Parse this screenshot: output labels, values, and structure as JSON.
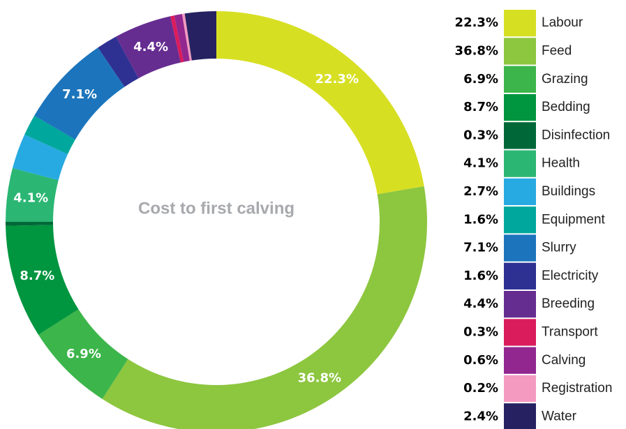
{
  "chart_data": {
    "type": "donut",
    "title": "Cost to first calving",
    "categories": [
      "Labour",
      "Feed",
      "Grazing",
      "Bedding",
      "Disinfection",
      "Health",
      "Buildings",
      "Equipment",
      "Slurry",
      "Electricity",
      "Breeding",
      "Transport",
      "Calving",
      "Registration",
      "Water"
    ],
    "values": [
      22.3,
      36.8,
      6.9,
      8.7,
      0.3,
      4.1,
      2.7,
      1.6,
      7.1,
      1.6,
      4.4,
      0.3,
      0.6,
      0.2,
      2.4
    ],
    "value_labels": [
      "22.3%",
      "36.8%",
      "6.9%",
      "8.7%",
      "0.3%",
      "4.1%",
      "2.7%",
      "1.6%",
      "7.1%",
      "1.6%",
      "4.4%",
      "0.3%",
      "0.6%",
      "0.2%",
      "2.4%"
    ],
    "colors": [
      "#d7df23",
      "#8dc63f",
      "#3cb54a",
      "#00953f",
      "#006838",
      "#2bb673",
      "#27aae1",
      "#00a79d",
      "#1c75bc",
      "#2e3192",
      "#662d91",
      "#da1c5c",
      "#92278f",
      "#f49ac1",
      "#262262"
    ],
    "legend": "right"
  }
}
